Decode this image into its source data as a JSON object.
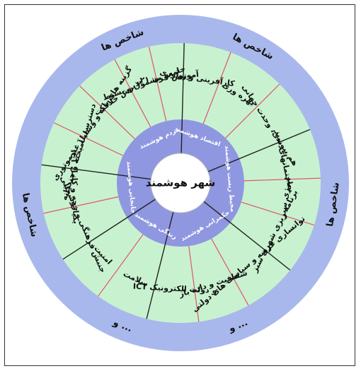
{
  "colors": {
    "outer_ring": "#a9b8ec",
    "segment_fill": "#c8f2cf",
    "inner_ring": "#8f97e0",
    "center_fill": "#ffffff",
    "divider_dark": "#222222",
    "divider_red": "#e0546a"
  },
  "outer_labels": [
    {
      "text": "شاخص ها",
      "angle": -112
    },
    {
      "text": "شاخص ها",
      "angle": -62
    },
    {
      "text": "شاخص ها",
      "angle": 8
    },
    {
      "text": "شاخص ها",
      "angle": 168
    },
    {
      "text": "و ...",
      "angle": 112
    },
    {
      "text": "و ...",
      "angle": 68
    }
  ],
  "center": {
    "title": "شهر هوشمند"
  },
  "inner_labels": [
    {
      "text": "مردم هوشمند",
      "angle": -115
    },
    {
      "text": "اقتصاد هوشمند",
      "angle": -70
    },
    {
      "text": "محیط زیست هوشمند",
      "angle": -5
    },
    {
      "text": "حکمرانی هوشمند",
      "angle": 60
    },
    {
      "text": "زندگی هوشمند",
      "angle": 120
    },
    {
      "text": "جابجایی هوشمند",
      "angle": 175
    }
  ],
  "segments": [
    {
      "text": "کارآفرینی و نوآوری",
      "angle": -81
    },
    {
      "text": "بهره وری",
      "angle": -57
    },
    {
      "text": "هم پیوندی، وحدت جهانی",
      "angle": -33
    },
    {
      "text": "ساختمانهای سبز",
      "angle": -12
    },
    {
      "text": "انرژی سبز",
      "angle": 8
    },
    {
      "text": "برنامه ریزی شهری سبز",
      "angle": 27
    },
    {
      "text": "توانسازی عرضه و سیاست های دولتی",
      "angle": 50
    },
    {
      "text": "شفافیت و داده باز",
      "angle": 72
    },
    {
      "text": "ICT و دولت الکترونیک",
      "angle": 93
    },
    {
      "text": "سلامت",
      "angle": 115
    },
    {
      "text": "امنیت",
      "angle": 137
    },
    {
      "text": "جنبش فرهنگی و خوشحالی",
      "angle": 157
    },
    {
      "text": "ICT یکپارچه و کامل",
      "angle": 178
    },
    {
      "text": "دسترسی آمیخته و چندگانه",
      "angle": -163
    },
    {
      "text": "گزینه های پاک و وسایل غیرموتوری",
      "angle": -146
    },
    {
      "text": "پذیرش خلاقیت",
      "angle": -126
    },
    {
      "text": "جامعه مشمول و بسیط",
      "angle": -110
    },
    {
      "text": "آموزش قرن ۲۱",
      "angle": -96
    }
  ]
}
